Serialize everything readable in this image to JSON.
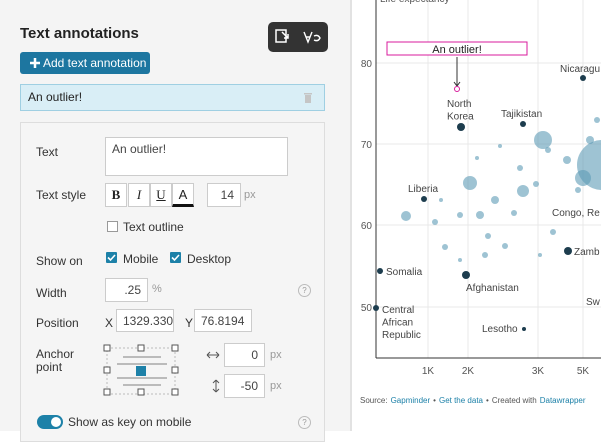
{
  "sidebar": {
    "title": "Text annotations",
    "add_button": "Add text annotation",
    "annotations": [
      "An outlier!"
    ]
  },
  "form": {
    "text_label": "Text",
    "text_value": "An outlier!",
    "style_label": "Text style",
    "style_buttons": [
      "B",
      "I",
      "U",
      "A"
    ],
    "font_size": 14,
    "font_size_unit": "px",
    "outline_label": "Text outline",
    "show_on_label": "Show on",
    "show_on_options": [
      "Mobile",
      "Desktop"
    ],
    "width_label": "Width",
    "width_value": ".25",
    "width_unit": "%",
    "position_label": "Position",
    "x_label": "X",
    "x_value": "1329.330",
    "y_label": "Y",
    "y_value": 76.8194,
    "anchor_label": [
      "Anchor",
      "point"
    ],
    "dx_value": 0,
    "dx_unit": "px",
    "dy_value": -50,
    "dy_unit": "px",
    "key_label": "Show as key on mobile",
    "help": "?"
  },
  "preview": {
    "axis_title": "Life expectancy",
    "yticks": [
      80,
      70,
      60,
      50
    ],
    "xticks": [
      "1K",
      "2K",
      "3K",
      "5K"
    ],
    "annotation": "An outlier!",
    "labels": [
      [
        "Nicaragu"
      ],
      [
        "North",
        "Korea"
      ],
      [
        "Tajikistan"
      ],
      [
        "Liberia"
      ],
      [
        "Congo, Re"
      ],
      [
        "Zamb"
      ],
      [
        "Somalia"
      ],
      [
        "Afghanistan"
      ],
      [
        "Sw"
      ],
      [
        "Central",
        "African",
        "Republic"
      ],
      [
        "Lesotho"
      ]
    ],
    "source": {
      "prefix": "Source:",
      "source_link": "Gapminder",
      "separator": "•",
      "data_link": "Get the data",
      "created": "Created with",
      "tool_link": "Datawrapper"
    }
  }
}
